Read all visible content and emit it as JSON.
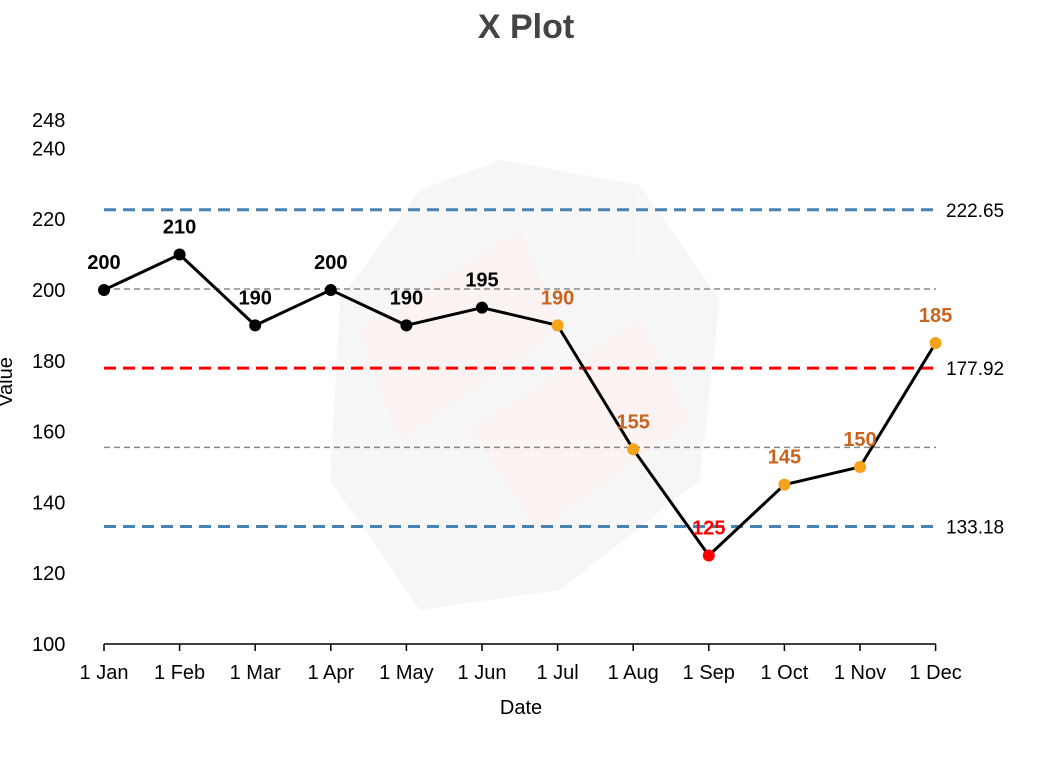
{
  "chart_data": {
    "type": "line",
    "title": "X Plot",
    "xlabel": "Date",
    "ylabel": "Value",
    "categories": [
      "1 Jan",
      "1 Feb",
      "1 Mar",
      "1 Apr",
      "1 May",
      "1 Jun",
      "1 Jul",
      "1 Aug",
      "1 Sep",
      "1 Oct",
      "1 Nov",
      "1 Dec"
    ],
    "values": [
      200,
      210,
      190,
      200,
      190,
      195,
      190,
      155,
      125,
      145,
      150,
      185
    ],
    "point_status": [
      "normal",
      "normal",
      "normal",
      "normal",
      "normal",
      "normal",
      "warning",
      "warning",
      "alert",
      "warning",
      "warning",
      "warning"
    ],
    "ylim": [
      100,
      248
    ],
    "yticks": [
      100,
      120,
      140,
      160,
      180,
      200,
      220,
      240,
      248
    ],
    "limits": {
      "ucl": 222.65,
      "center": 177.92,
      "lcl": 133.18,
      "upper_sigma": 200.28,
      "lower_sigma": 155.55
    },
    "limit_labels": {
      "ucl": "222.65",
      "center": "177.92",
      "lcl": "133.18"
    },
    "colors": {
      "line": "#000000",
      "normal": "#000000",
      "warning": "#f5a31a",
      "warning_label": "#c8641e",
      "alert": "#ff0000",
      "limit": "#4682b4",
      "center": "#ff0000",
      "sigma": "#888888",
      "title": "#444444"
    }
  }
}
